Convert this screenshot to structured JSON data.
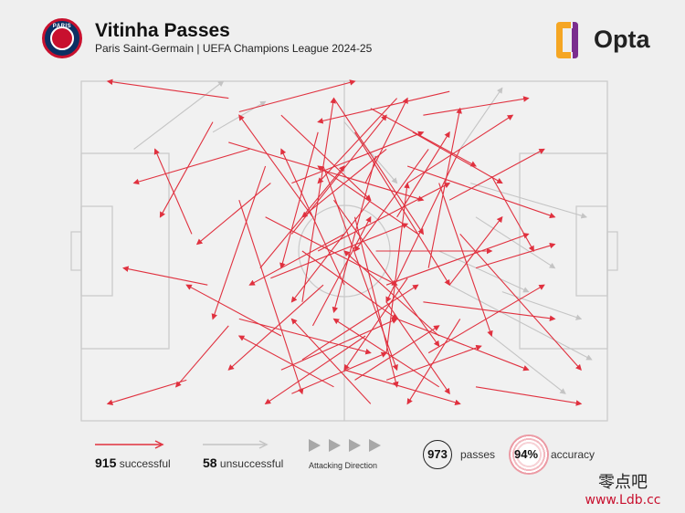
{
  "header": {
    "title": "Vitinha Passes",
    "subtitle": "Paris Saint-Germain | UEFA Champions League 2024-25",
    "club_logo_text": "PARIS",
    "brand": "Opta"
  },
  "legend": {
    "successful_count": "915",
    "successful_label": "successful",
    "unsuccessful_count": "58",
    "unsuccessful_label": "unsuccessful",
    "direction_label": "Attacking Direction",
    "passes_count": "973",
    "passes_label": "passes",
    "accuracy_value": "94%",
    "accuracy_label": "accuracy"
  },
  "watermark": {
    "line1": "零点吧",
    "line2": "www.Ldb.cc"
  },
  "colors": {
    "successful": "#e0313f",
    "unsuccessful": "#c4c4c4",
    "pitch_line": "#c9c9c9",
    "pitch_fill": "#f1f1f1",
    "brand_orange": "#f5a623",
    "brand_purple": "#7b2d8e"
  },
  "chart_data": {
    "type": "scatter",
    "description_units": "pitch coordinates 0-100 (x: attacking left to right, y: top to bottom)",
    "attacking_direction": "left-to-right",
    "total_passes": 973,
    "successful": 915,
    "unsuccessful": 58,
    "accuracy_pct": 94,
    "series": [
      {
        "name": "successful",
        "passes": [
          [
            28,
            5,
            5,
            0
          ],
          [
            25,
            12,
            15,
            40
          ],
          [
            30,
            9,
            52,
            0
          ],
          [
            21,
            45,
            14,
            20
          ],
          [
            28,
            18,
            65,
            35
          ],
          [
            70,
            3,
            45,
            12
          ],
          [
            35,
            40,
            60,
            60
          ],
          [
            40,
            30,
            65,
            15
          ],
          [
            55,
            8,
            75,
            25
          ],
          [
            45,
            50,
            70,
            30
          ],
          [
            58,
            60,
            85,
            45
          ],
          [
            62,
            25,
            90,
            40
          ],
          [
            65,
            10,
            85,
            5
          ],
          [
            72,
            45,
            95,
            85
          ],
          [
            30,
            70,
            55,
            80
          ],
          [
            38,
            85,
            60,
            70
          ],
          [
            20,
            88,
            5,
            95
          ],
          [
            50,
            85,
            72,
            95
          ],
          [
            48,
            90,
            30,
            75
          ],
          [
            42,
            65,
            48,
            5
          ],
          [
            52,
            40,
            60,
            90
          ],
          [
            58,
            80,
            62,
            30
          ],
          [
            66,
            55,
            72,
            8
          ],
          [
            68,
            75,
            50,
            50
          ],
          [
            75,
            90,
            95,
            95
          ],
          [
            62,
            30,
            82,
            10
          ],
          [
            58,
            20,
            42,
            40
          ],
          [
            45,
            15,
            38,
            55
          ],
          [
            55,
            95,
            40,
            70
          ],
          [
            60,
            70,
            85,
            85
          ],
          [
            70,
            35,
            88,
            20
          ],
          [
            35,
            25,
            25,
            70
          ],
          [
            44,
            72,
            55,
            40
          ],
          [
            50,
            60,
            38,
            20
          ],
          [
            65,
            65,
            90,
            70
          ],
          [
            40,
            45,
            58,
            10
          ],
          [
            52,
            15,
            70,
            60
          ],
          [
            36,
            58,
            62,
            42
          ],
          [
            72,
            20,
            58,
            65
          ],
          [
            48,
            35,
            68,
            78
          ],
          [
            30,
            35,
            42,
            92
          ],
          [
            64,
            45,
            45,
            25
          ],
          [
            56,
            50,
            78,
            50
          ],
          [
            42,
            82,
            64,
            60
          ],
          [
            68,
            90,
            48,
            70
          ],
          [
            60,
            5,
            45,
            30
          ],
          [
            72,
            70,
            62,
            95
          ],
          [
            38,
            10,
            55,
            35
          ],
          [
            54,
            75,
            35,
            95
          ],
          [
            46,
            25,
            60,
            85
          ],
          [
            63,
            15,
            80,
            30
          ],
          [
            55,
            35,
            40,
            65
          ],
          [
            70,
            60,
            80,
            40
          ],
          [
            34,
            55,
            50,
            25
          ],
          [
            58,
            65,
            70,
            92
          ],
          [
            48,
            5,
            65,
            45
          ],
          [
            40,
            92,
            58,
            80
          ],
          [
            66,
            80,
            88,
            60
          ],
          [
            50,
            45,
            32,
            60
          ],
          [
            62,
            58,
            50,
            85
          ],
          [
            44,
            40,
            30,
            10
          ],
          [
            56,
            22,
            48,
            68
          ],
          [
            68,
            30,
            78,
            75
          ],
          [
            38,
            75,
            20,
            60
          ],
          [
            52,
            88,
            68,
            72
          ],
          [
            60,
            40,
            70,
            15
          ],
          [
            24,
            60,
            8,
            55
          ],
          [
            28,
            72,
            18,
            90
          ],
          [
            32,
            20,
            10,
            30
          ],
          [
            75,
            55,
            90,
            48
          ],
          [
            78,
            28,
            86,
            50
          ],
          [
            46,
            60,
            28,
            85
          ],
          [
            54,
            30,
            62,
            5
          ],
          [
            66,
            20,
            52,
            50
          ],
          [
            42,
            50,
            60,
            70
          ],
          [
            58,
            88,
            76,
            78
          ],
          [
            36,
            30,
            22,
            48
          ]
        ]
      },
      {
        "name": "unsuccessful",
        "passes": [
          [
            10,
            20,
            27,
            0
          ],
          [
            25,
            15,
            35,
            6
          ],
          [
            70,
            60,
            97,
            82
          ],
          [
            75,
            40,
            90,
            55
          ],
          [
            72,
            20,
            80,
            2
          ],
          [
            78,
            75,
            92,
            92
          ],
          [
            68,
            50,
            85,
            62
          ],
          [
            74,
            30,
            96,
            40
          ],
          [
            50,
            12,
            60,
            30
          ],
          [
            80,
            62,
            95,
            70
          ]
        ]
      }
    ],
    "ylim": [
      0,
      100
    ],
    "xlim": [
      0,
      100
    ]
  }
}
